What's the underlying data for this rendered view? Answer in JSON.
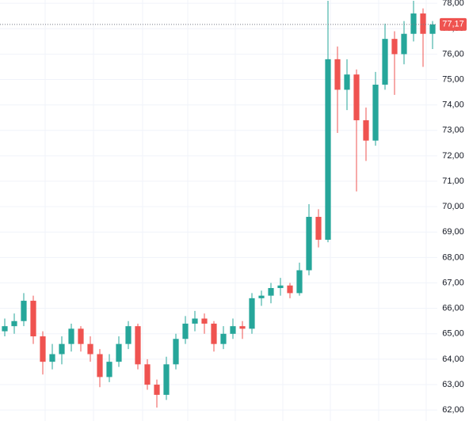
{
  "chart_data": {
    "type": "candlestick",
    "open": [
      65.1,
      65.3,
      65.5,
      66.3,
      64.9,
      63.9,
      64.2,
      64.6,
      65.2,
      64.6,
      64.2,
      63.3,
      63.9,
      64.6,
      65.3,
      63.8,
      63.0,
      62.6,
      63.8,
      64.8,
      65.4,
      65.6,
      65.4,
      64.6,
      65.0,
      65.3,
      65.2,
      66.4,
      66.5,
      66.8,
      66.9,
      66.6,
      67.5,
      69.6,
      68.7,
      75.8,
      74.6,
      75.2,
      73.4,
      72.6,
      74.8,
      76.6,
      76.0,
      76.8,
      77.6,
      76.8
    ],
    "high": [
      65.6,
      65.8,
      66.6,
      66.5,
      65.1,
      64.6,
      64.9,
      65.4,
      65.3,
      64.9,
      64.4,
      64.2,
      64.9,
      65.5,
      65.4,
      64.0,
      63.2,
      64.1,
      65.0,
      65.7,
      65.9,
      65.8,
      65.5,
      65.3,
      65.6,
      65.5,
      66.6,
      66.7,
      67.0,
      67.2,
      67.0,
      67.8,
      70.1,
      69.9,
      78.1,
      76.3,
      75.8,
      75.4,
      73.9,
      75.3,
      77.2,
      76.9,
      77.3,
      78.1,
      77.8,
      77.3
    ],
    "low": [
      64.9,
      65.0,
      65.3,
      64.6,
      63.4,
      63.6,
      63.8,
      64.3,
      64.3,
      63.9,
      62.9,
      63.1,
      63.7,
      64.4,
      63.6,
      62.8,
      62.1,
      62.4,
      63.6,
      64.6,
      65.1,
      65.0,
      64.3,
      64.4,
      64.8,
      64.8,
      65.0,
      66.1,
      66.2,
      66.5,
      66.4,
      66.5,
      67.3,
      68.4,
      68.6,
      72.9,
      73.8,
      70.6,
      71.8,
      72.4,
      74.6,
      74.4,
      75.6,
      76.5,
      75.5,
      76.2
    ],
    "close": [
      65.3,
      65.5,
      66.3,
      64.9,
      63.9,
      64.2,
      64.6,
      65.2,
      64.6,
      64.2,
      63.3,
      63.9,
      64.6,
      65.3,
      63.8,
      63.0,
      62.6,
      63.8,
      64.8,
      65.4,
      65.6,
      65.4,
      64.6,
      65.0,
      65.3,
      65.2,
      66.4,
      66.5,
      66.8,
      66.9,
      66.6,
      67.5,
      69.6,
      68.7,
      75.8,
      74.6,
      75.2,
      73.4,
      72.6,
      74.8,
      76.6,
      76.0,
      76.8,
      77.6,
      76.8,
      77.17
    ],
    "up_color": "#26a69a",
    "down_color": "#ef5350",
    "ylim": [
      61.57,
      78.13
    ],
    "yticks": [
      {
        "value": 62,
        "label": "62,00"
      },
      {
        "value": 63,
        "label": "63,00"
      },
      {
        "value": 64,
        "label": "64,00"
      },
      {
        "value": 65,
        "label": "65,00"
      },
      {
        "value": 66,
        "label": "66,00"
      },
      {
        "value": 67,
        "label": "67,00"
      },
      {
        "value": 68,
        "label": "68,00"
      },
      {
        "value": 69,
        "label": "69,00"
      },
      {
        "value": 70,
        "label": "70,00"
      },
      {
        "value": 71,
        "label": "71,00"
      },
      {
        "value": 72,
        "label": "72,00"
      },
      {
        "value": 73,
        "label": "73,00"
      },
      {
        "value": 74,
        "label": "74,00"
      },
      {
        "value": 75,
        "label": "75,00"
      },
      {
        "value": 76,
        "label": "76,00"
      },
      {
        "value": 77,
        "label": "77,00"
      },
      {
        "value": 78,
        "label": "78,00"
      }
    ],
    "last_price": 77.17,
    "last_price_label": "77,17",
    "grid": true
  }
}
